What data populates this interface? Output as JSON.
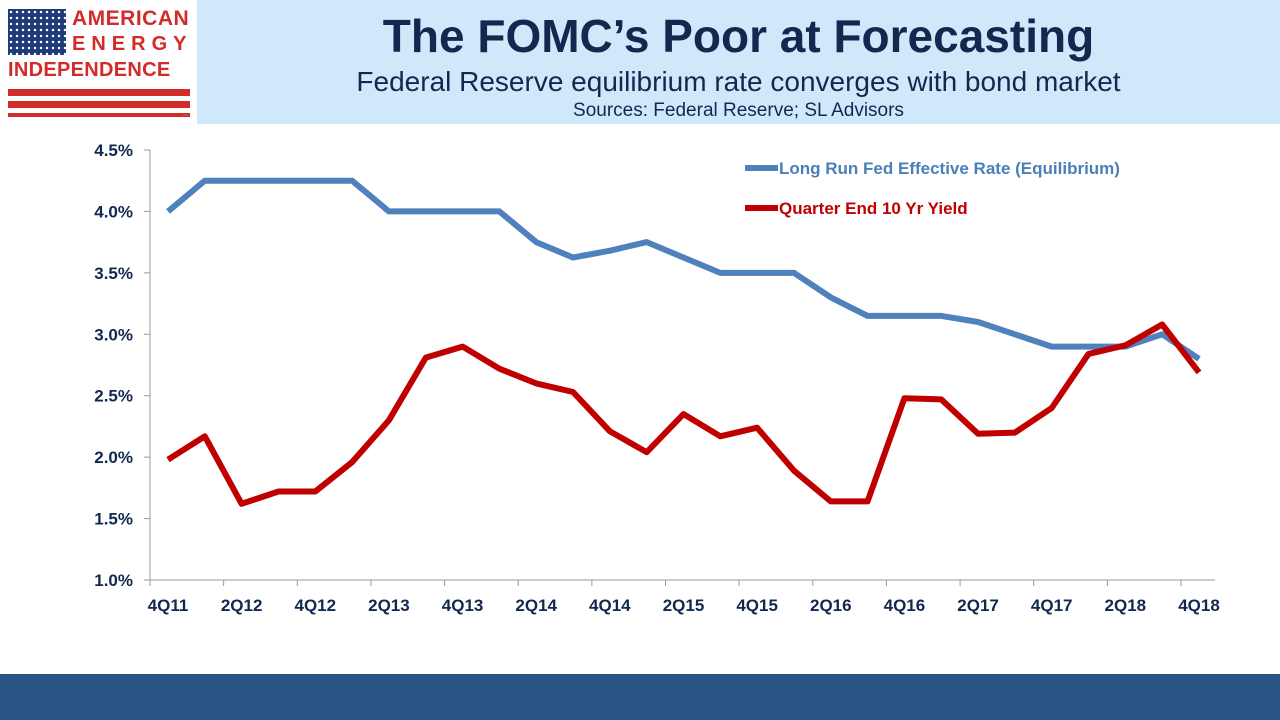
{
  "logo": {
    "line1": "AMERICAN",
    "line2": "ENERGY",
    "line3": "INDEPENDENCE",
    "tm": "™",
    "colors": {
      "red": "#d32a2a",
      "blue": "#1e3a78"
    }
  },
  "header": {
    "title": "The FOMC’s Poor at Forecasting",
    "subtitle": "Federal Reserve equilibrium rate converges with bond market",
    "sources": "Sources: Federal Reserve; SL Advisors"
  },
  "chart_data": {
    "type": "line",
    "x": [
      "4Q11",
      "1Q12",
      "2Q12",
      "3Q12",
      "4Q12",
      "1Q13",
      "2Q13",
      "3Q13",
      "4Q13",
      "1Q14",
      "2Q14",
      "3Q14",
      "4Q14",
      "1Q15",
      "2Q15",
      "3Q15",
      "4Q15",
      "1Q16",
      "2Q16",
      "3Q16",
      "4Q16",
      "1Q17",
      "2Q17",
      "3Q17",
      "4Q17",
      "1Q18",
      "2Q18",
      "3Q18",
      "4Q18"
    ],
    "tick_labels": [
      "4Q11",
      "2Q12",
      "4Q12",
      "2Q13",
      "4Q13",
      "2Q14",
      "4Q14",
      "2Q15",
      "4Q15",
      "2Q16",
      "4Q16",
      "2Q17",
      "4Q17",
      "2Q18",
      "4Q18"
    ],
    "ylim": [
      1.0,
      4.5
    ],
    "yticks": [
      {
        "value": 1.0,
        "label": "1.0%"
      },
      {
        "value": 1.5,
        "label": "1.5%"
      },
      {
        "value": 2.0,
        "label": "2.0%"
      },
      {
        "value": 2.5,
        "label": "2.5%"
      },
      {
        "value": 3.0,
        "label": "3.0%"
      },
      {
        "value": 3.5,
        "label": "3.5%"
      },
      {
        "value": 4.0,
        "label": "4.0%"
      },
      {
        "value": 4.5,
        "label": "4.5%"
      }
    ],
    "grid": false,
    "legend_position": "top-right",
    "series": [
      {
        "name": "Long Run Fed Effective Rate (Equilibrium)",
        "color": "#4f81bd",
        "values": [
          4.0,
          4.25,
          4.25,
          4.25,
          4.25,
          4.25,
          4.0,
          4.0,
          4.0,
          4.0,
          3.75,
          3.625,
          3.68,
          3.75,
          3.625,
          3.5,
          3.5,
          3.5,
          3.3,
          3.15,
          3.15,
          3.15,
          3.1,
          3.0,
          2.9,
          2.9,
          2.9,
          3.0,
          2.8
        ]
      },
      {
        "name": "Quarter End 10 Yr Yield",
        "color": "#c00000",
        "values": [
          1.98,
          2.17,
          1.62,
          1.72,
          1.72,
          1.96,
          2.3,
          2.81,
          2.9,
          2.72,
          2.6,
          2.53,
          2.21,
          2.04,
          2.35,
          2.17,
          2.24,
          1.89,
          1.64,
          1.64,
          2.48,
          2.47,
          2.19,
          2.2,
          2.4,
          2.84,
          2.91,
          3.08,
          2.69
        ]
      }
    ]
  },
  "colors": {
    "header_band": "#cfe9fa",
    "footer_bar": "#2a5483",
    "text_dark": "#13284f"
  }
}
